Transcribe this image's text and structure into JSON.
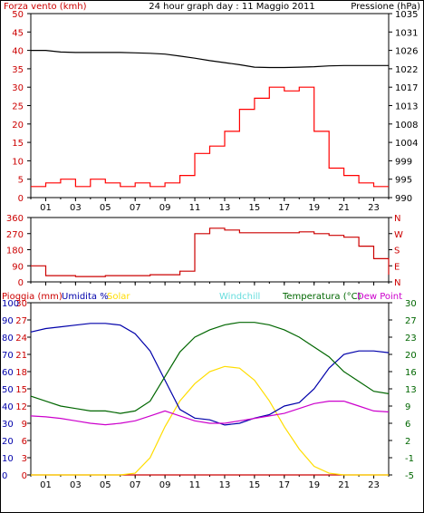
{
  "header": {
    "left_title": "Forza vento (kmh)",
    "center_title": "24 hour graph day : 11 Maggio 2011",
    "right_title": "Pressione (hPa)"
  },
  "colors": {
    "gust": "#ff0000",
    "wind": "#0000cc",
    "pressure": "#000000",
    "direction": "#cc0000",
    "rain": "#cc0000",
    "humidity": "#0000aa",
    "solar": "#ffdd00",
    "windchill": "#66dddd",
    "temperature": "#006600",
    "dewpoint": "#cc00cc",
    "axis_left": "#cc0000",
    "axis_right_top": "#000000",
    "axis_right_bottom": "#006600"
  },
  "x_ticks": [
    "01",
    "03",
    "05",
    "07",
    "09",
    "11",
    "13",
    "15",
    "17",
    "19",
    "21",
    "23"
  ],
  "panel1": {
    "left_ticks": [
      "50",
      "45",
      "40",
      "35",
      "30",
      "25",
      "20",
      "15",
      "10",
      "5",
      "0"
    ],
    "right_ticks": [
      "1035",
      "1031",
      "1026",
      "1022",
      "1017",
      "1013",
      "1008",
      "1004",
      "999",
      "995",
      "990"
    ]
  },
  "panel2": {
    "left_ticks": [
      "360",
      "270",
      "180",
      "90",
      "0"
    ],
    "right_ticks": [
      "N",
      "W",
      "S",
      "E",
      "N"
    ]
  },
  "panel3": {
    "legend": {
      "rain": "Pioggia (mm)",
      "humidity": "Umidita %",
      "solar": "Solar",
      "windchill": "Windchill",
      "temperature": "Temperatura (°C)",
      "dewpoint": "Dew Point"
    },
    "left_ticks_rain": [
      "30",
      "27",
      "24",
      "21",
      "18",
      "15",
      "12",
      "9",
      "6",
      "3",
      "0"
    ],
    "left_ticks_hum": [
      "100",
      "90",
      "80",
      "70",
      "60",
      "50",
      "40",
      "30",
      "20",
      "10",
      "0"
    ],
    "right_ticks": [
      "30",
      "27",
      "23",
      "20",
      "16",
      "13",
      "9",
      "6",
      "2",
      "-1",
      "-5"
    ]
  },
  "chart_data": [
    {
      "type": "line",
      "title": "24 hour graph day : 11 Maggio 2011",
      "x": [
        0,
        1,
        2,
        3,
        4,
        5,
        6,
        7,
        8,
        9,
        10,
        11,
        12,
        13,
        14,
        15,
        16,
        17,
        18,
        19,
        20,
        21,
        22,
        23,
        24
      ],
      "series": [
        {
          "name": "Forza vento (kmh)",
          "axis": "left",
          "values": [
            3,
            4,
            5,
            3,
            5,
            4,
            3,
            4,
            3,
            4,
            6,
            12,
            14,
            18,
            24,
            27,
            30,
            29,
            30,
            18,
            8,
            6,
            4,
            3,
            3
          ]
        },
        {
          "name": "Pressione (hPa)",
          "axis": "right",
          "values": [
            1026,
            1026,
            1025.6,
            1025.5,
            1025.5,
            1025.5,
            1025.5,
            1025.4,
            1025.3,
            1025.1,
            1024.6,
            1024.1,
            1023.5,
            1023,
            1022.5,
            1021.9,
            1021.8,
            1021.8,
            1021.9,
            1022,
            1022.2,
            1022.3,
            1022.3,
            1022.3,
            1022.3
          ]
        }
      ],
      "ylim_left": [
        0,
        50
      ],
      "ylim_right": [
        990,
        1035
      ]
    },
    {
      "type": "line",
      "x": [
        0,
        1,
        2,
        3,
        4,
        5,
        6,
        7,
        8,
        9,
        10,
        11,
        12,
        13,
        14,
        15,
        16,
        17,
        18,
        19,
        20,
        21,
        22,
        23,
        24
      ],
      "series": [
        {
          "name": "direction",
          "values": [
            90,
            35,
            35,
            30,
            30,
            35,
            35,
            35,
            40,
            40,
            60,
            270,
            300,
            290,
            275,
            275,
            275,
            275,
            280,
            270,
            260,
            250,
            200,
            130,
            40
          ]
        }
      ],
      "ylim": [
        0,
        360
      ]
    },
    {
      "type": "line",
      "x": [
        0,
        1,
        2,
        3,
        4,
        5,
        6,
        7,
        8,
        9,
        10,
        11,
        12,
        13,
        14,
        15,
        16,
        17,
        18,
        19,
        20,
        21,
        22,
        23,
        24
      ],
      "series": [
        {
          "name": "Pioggia (mm)",
          "axis": "rain",
          "values": [
            0,
            0,
            0,
            0,
            0,
            0,
            0,
            0,
            0,
            0,
            0,
            0,
            0,
            0,
            0,
            0,
            0,
            0,
            0,
            0,
            0,
            0,
            0,
            0,
            0
          ]
        },
        {
          "name": "Umidita %",
          "axis": "humidity",
          "values": [
            83,
            85,
            86,
            87,
            88,
            88,
            87,
            82,
            72,
            55,
            38,
            33,
            32,
            29,
            30,
            33,
            35,
            40,
            42,
            50,
            62,
            70,
            72,
            72,
            71
          ]
        },
        {
          "name": "Solar",
          "axis": "humidity",
          "values": [
            0,
            0,
            0,
            0,
            0,
            0,
            0,
            1,
            10,
            28,
            43,
            53,
            60,
            63,
            62,
            55,
            43,
            28,
            15,
            5,
            1,
            0,
            0,
            0,
            0
          ]
        },
        {
          "name": "Temperatura (°C)",
          "axis": "temperature",
          "values": [
            11,
            10,
            9,
            8.5,
            8,
            8,
            7.5,
            8,
            10,
            15,
            20,
            23,
            24.5,
            25.5,
            26,
            26,
            25.5,
            24.5,
            23,
            21,
            19,
            16,
            14,
            12,
            11.5
          ]
        },
        {
          "name": "Dew Point",
          "axis": "temperature",
          "values": [
            7,
            6.8,
            6.5,
            6,
            5.5,
            5.2,
            5.5,
            6,
            7,
            8,
            7,
            6,
            5.5,
            5.5,
            6,
            6.5,
            7,
            7.5,
            8.5,
            9.5,
            10,
            10,
            9,
            8,
            7.8
          ]
        }
      ],
      "ylim_rain": [
        0,
        30
      ],
      "ylim_humidity": [
        0,
        100
      ],
      "ylim_temperature": [
        -5,
        30
      ]
    }
  ]
}
